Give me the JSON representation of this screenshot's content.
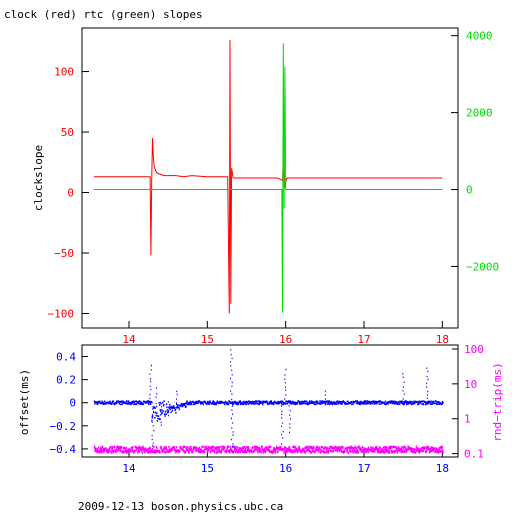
{
  "colors": {
    "frame": "#000000",
    "clock": "#ff0000",
    "rtc": "#00dd00",
    "offset": "#0000ff",
    "rndtrip": "#ff00ff",
    "bottom_x_ticks": "#0000ff",
    "top_x_ticks": "#ff0000"
  },
  "footer": "2009-12-13 boson.physics.ubc.ca",
  "chart_data": [
    {
      "type": "line",
      "title": "clock (red) rtc (green) slopes",
      "ylabel": "clockslope",
      "xlim": [
        13.4,
        18.2
      ],
      "ylim": [
        -112,
        136
      ],
      "x_ticks": [
        14,
        15,
        16,
        17,
        18
      ],
      "y_ticks": [
        -100,
        -50,
        0,
        50,
        100
      ],
      "right_axis": {
        "ylim": [
          -3600,
          4200
        ],
        "ticks": [
          -2000,
          0,
          2000,
          4000
        ]
      },
      "series": [
        {
          "name": "clock",
          "color": "#ff0000",
          "x": [
            13.55,
            14.27,
            14.28,
            14.29,
            14.3,
            14.31,
            14.32,
            14.34,
            14.36,
            14.4,
            14.45,
            14.5,
            14.6,
            14.7,
            14.8,
            15.0,
            15.26,
            15.28,
            15.29,
            15.3,
            15.31,
            15.33,
            15.36,
            15.4,
            15.9,
            15.96,
            15.97,
            15.98,
            15.99,
            16.0,
            16.02,
            16.06,
            16.1,
            18.0
          ],
          "y": [
            13,
            13,
            -52,
            10,
            45,
            30,
            22,
            18,
            16,
            15,
            14,
            14,
            14,
            13,
            14,
            13,
            13,
            -100,
            126,
            -92,
            20,
            12,
            12,
            12,
            12,
            10,
            28,
            25,
            4,
            9,
            12,
            12,
            12,
            12
          ]
        },
        {
          "name": "rtc",
          "color": "#00dd00",
          "axis": "right",
          "x": [
            13.55,
            15.95,
            15.96,
            15.97,
            15.98,
            15.99,
            16.0,
            18.0
          ],
          "y": [
            0,
            0,
            -3200,
            3800,
            -500,
            3200,
            0,
            0
          ]
        }
      ]
    },
    {
      "type": "scatter",
      "ylabel": "offset(ms)",
      "right_ylabel": "rnd−trip(ms)",
      "xlim": [
        13.4,
        18.2
      ],
      "ylim": [
        -0.47,
        0.5
      ],
      "x_ticks": [
        14,
        15,
        16,
        17,
        18
      ],
      "y_ticks": [
        -0.4,
        -0.2,
        0,
        0.2,
        0.4
      ],
      "right_axis": {
        "scale": "log",
        "ylim": [
          0.08,
          130
        ],
        "ticks": [
          0.1,
          1,
          10,
          100
        ]
      },
      "series": [
        {
          "name": "offset",
          "color": "#0000ff",
          "baseline": 0,
          "spikes": [
            {
              "x": 14.27,
              "y": 0.32
            },
            {
              "x": 14.3,
              "y": -0.38
            },
            {
              "x": 14.35,
              "y": 0.12
            },
            {
              "x": 14.4,
              "y": -0.2
            },
            {
              "x": 14.5,
              "y": -0.12
            },
            {
              "x": 14.6,
              "y": 0.1
            },
            {
              "x": 15.3,
              "y": 0.46
            },
            {
              "x": 15.31,
              "y": -0.42
            },
            {
              "x": 15.95,
              "y": -0.35
            },
            {
              "x": 15.99,
              "y": 0.28
            },
            {
              "x": 16.05,
              "y": -0.25
            },
            {
              "x": 16.5,
              "y": 0.1
            },
            {
              "x": 17.5,
              "y": 0.25
            },
            {
              "x": 17.8,
              "y": 0.3
            }
          ]
        },
        {
          "name": "rnd-trip",
          "color": "#ff00ff",
          "axis": "right",
          "baseline": 0.13
        }
      ]
    }
  ]
}
